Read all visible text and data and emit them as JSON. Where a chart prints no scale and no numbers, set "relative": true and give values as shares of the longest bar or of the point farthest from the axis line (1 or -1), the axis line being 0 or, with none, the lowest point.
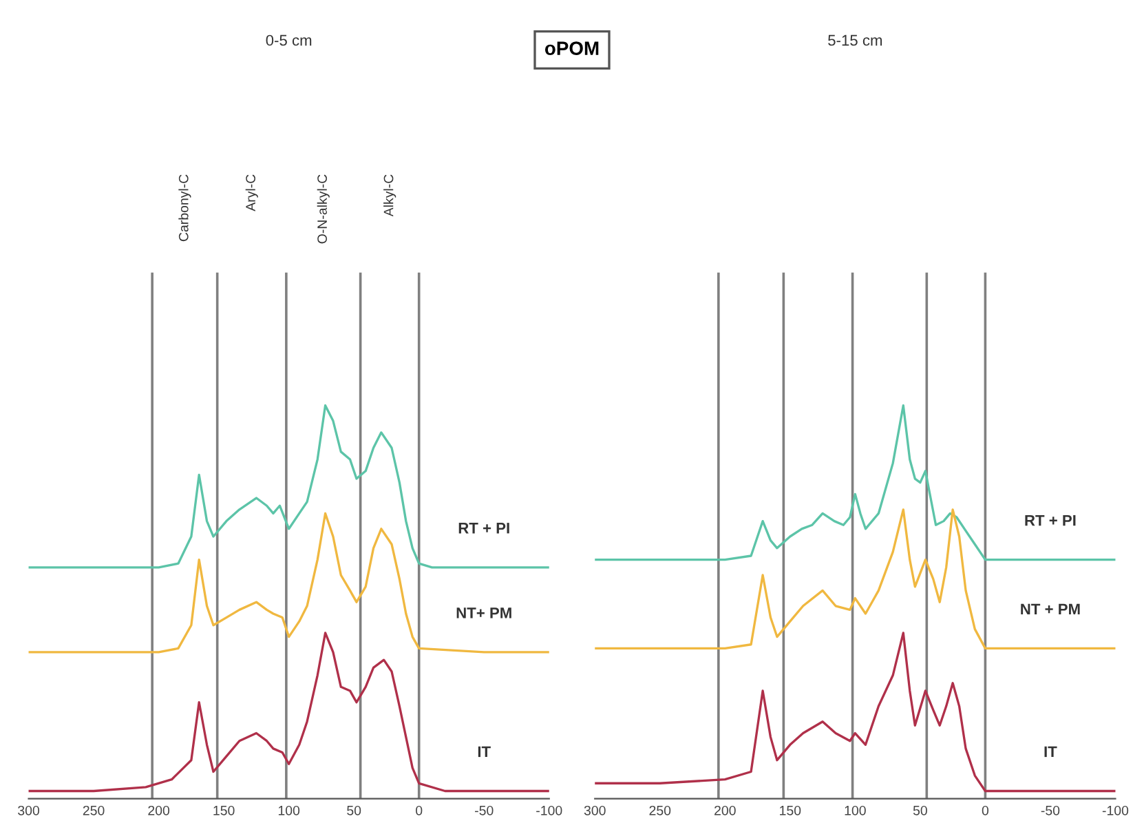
{
  "chart_data": [
    {
      "type": "line",
      "title": "0-5 cm",
      "annotations": [
        "oPOM",
        "Carbonyl-C",
        "Aryl-C",
        "O-N-alkyl-C",
        "Alkyl-C"
      ],
      "relative": true,
      "xlim": [
        300,
        -100
      ],
      "xticks": [
        300,
        250,
        200,
        150,
        100,
        50,
        0,
        -50,
        -100
      ],
      "grid": false,
      "legend": false,
      "tick_labels": "x",
      "ref_lines": [
        {
          "axis": "x",
          "value": 205,
          "color": "#808080"
        },
        {
          "axis": "x",
          "value": 155,
          "color": "#808080"
        },
        {
          "axis": "x",
          "value": 102,
          "color": "#808080"
        },
        {
          "axis": "x",
          "value": 45,
          "color": "#808080"
        },
        {
          "axis": "x",
          "value": 0,
          "color": "#808080"
        }
      ],
      "series": [
        {
          "name": "RT + PI",
          "color": "#5cc4a8",
          "x": [
            300,
            250,
            200,
            185,
            175,
            169,
            163,
            158,
            148,
            138,
            125,
            117,
            112,
            107,
            100,
            92,
            86,
            78,
            72,
            66,
            60,
            53,
            48,
            41,
            35,
            29,
            21,
            15,
            10,
            5,
            0,
            -10,
            -50,
            -100
          ],
          "values": [
            0.58,
            0.58,
            0.58,
            0.59,
            0.66,
            0.82,
            0.7,
            0.66,
            0.7,
            0.73,
            0.76,
            0.74,
            0.72,
            0.74,
            0.68,
            0.72,
            0.75,
            0.86,
            1.0,
            0.96,
            0.88,
            0.86,
            0.81,
            0.83,
            0.89,
            0.93,
            0.89,
            0.8,
            0.7,
            0.63,
            0.59,
            0.58,
            0.58,
            0.58
          ]
        },
        {
          "name": "NT+ PM",
          "color": "#f0b840",
          "x": [
            300,
            250,
            200,
            185,
            175,
            169,
            163,
            158,
            148,
            138,
            125,
            117,
            112,
            105,
            100,
            92,
            86,
            78,
            72,
            66,
            60,
            53,
            48,
            41,
            35,
            29,
            21,
            15,
            10,
            5,
            0,
            -50,
            -100
          ],
          "values": [
            0.36,
            0.36,
            0.36,
            0.37,
            0.43,
            0.6,
            0.48,
            0.43,
            0.45,
            0.47,
            0.49,
            0.47,
            0.46,
            0.45,
            0.4,
            0.44,
            0.48,
            0.6,
            0.72,
            0.66,
            0.56,
            0.52,
            0.49,
            0.53,
            0.63,
            0.68,
            0.64,
            0.55,
            0.46,
            0.4,
            0.37,
            0.36,
            0.36
          ]
        },
        {
          "name": "IT",
          "color": "#b0304a",
          "x": [
            300,
            250,
            210,
            190,
            175,
            169,
            163,
            158,
            148,
            138,
            125,
            117,
            112,
            105,
            100,
            92,
            86,
            78,
            72,
            66,
            60,
            53,
            48,
            41,
            35,
            27,
            21,
            15,
            10,
            5,
            0,
            -20,
            -100
          ],
          "values": [
            0,
            0,
            0.01,
            0.03,
            0.08,
            0.23,
            0.12,
            0.05,
            0.09,
            0.13,
            0.15,
            0.13,
            0.11,
            0.1,
            0.07,
            0.12,
            0.18,
            0.3,
            0.41,
            0.36,
            0.27,
            0.26,
            0.23,
            0.27,
            0.32,
            0.34,
            0.31,
            0.22,
            0.14,
            0.06,
            0.02,
            0,
            0
          ]
        }
      ]
    },
    {
      "type": "line",
      "title": "5-15 cm",
      "relative": true,
      "xlim": [
        300,
        -100
      ],
      "xticks": [
        300,
        250,
        200,
        150,
        100,
        50,
        0,
        -50,
        -100
      ],
      "grid": false,
      "legend": false,
      "tick_labels": "x",
      "ref_lines": [
        {
          "axis": "x",
          "value": 205,
          "color": "#808080"
        },
        {
          "axis": "x",
          "value": 155,
          "color": "#808080"
        },
        {
          "axis": "x",
          "value": 102,
          "color": "#808080"
        },
        {
          "axis": "x",
          "value": 45,
          "color": "#808080"
        },
        {
          "axis": "x",
          "value": 0,
          "color": "#808080"
        }
      ],
      "series": [
        {
          "name": "RT + PI",
          "color": "#5cc4a8",
          "x": [
            300,
            250,
            200,
            180,
            171,
            165,
            160,
            150,
            141,
            133,
            125,
            116,
            109,
            104,
            100,
            96,
            92,
            82,
            71,
            63,
            58,
            54,
            50,
            46,
            42,
            38,
            32,
            27,
            22,
            16,
            8,
            0,
            -10,
            -50,
            -100
          ],
          "values": [
            0.6,
            0.6,
            0.6,
            0.61,
            0.7,
            0.65,
            0.63,
            0.66,
            0.68,
            0.69,
            0.72,
            0.7,
            0.69,
            0.71,
            0.77,
            0.72,
            0.68,
            0.72,
            0.85,
            1.0,
            0.86,
            0.81,
            0.8,
            0.83,
            0.76,
            0.69,
            0.7,
            0.72,
            0.71,
            0.68,
            0.64,
            0.6,
            0.6,
            0.6,
            0.6
          ]
        },
        {
          "name": "NT + PM",
          "color": "#f0b840",
          "x": [
            300,
            250,
            200,
            180,
            171,
            165,
            160,
            150,
            140,
            125,
            115,
            104,
            100,
            92,
            82,
            71,
            63,
            58,
            54,
            46,
            40,
            35,
            30,
            25,
            20,
            15,
            8,
            0,
            -10,
            -50,
            -100
          ],
          "values": [
            0.37,
            0.37,
            0.37,
            0.38,
            0.56,
            0.45,
            0.4,
            0.44,
            0.48,
            0.52,
            0.48,
            0.47,
            0.5,
            0.46,
            0.52,
            0.62,
            0.73,
            0.6,
            0.53,
            0.6,
            0.55,
            0.49,
            0.58,
            0.73,
            0.66,
            0.52,
            0.42,
            0.37,
            0.37,
            0.37,
            0.37
          ]
        },
        {
          "name": "IT",
          "color": "#b0304a",
          "x": [
            300,
            250,
            200,
            180,
            171,
            165,
            160,
            150,
            140,
            125,
            115,
            104,
            100,
            92,
            82,
            71,
            63,
            58,
            54,
            46,
            40,
            35,
            30,
            25,
            20,
            15,
            8,
            0,
            -10,
            -50,
            -100
          ],
          "values": [
            0.02,
            0.02,
            0.03,
            0.05,
            0.26,
            0.14,
            0.08,
            0.12,
            0.15,
            0.18,
            0.15,
            0.13,
            0.15,
            0.12,
            0.22,
            0.3,
            0.41,
            0.26,
            0.17,
            0.26,
            0.21,
            0.17,
            0.22,
            0.28,
            0.22,
            0.11,
            0.04,
            0,
            0,
            0,
            0
          ]
        }
      ]
    }
  ]
}
